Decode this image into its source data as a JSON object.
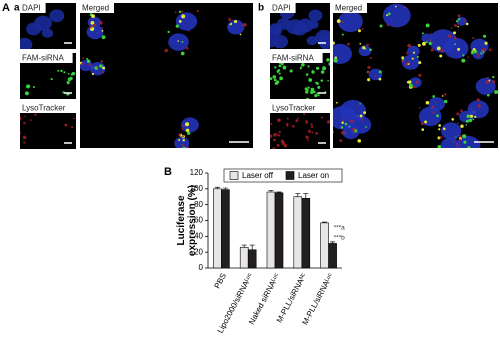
{
  "panel_a": {
    "label": "A",
    "sublabel": "a",
    "channels": [
      "DAPI",
      "FAM-siRNA",
      "LysoTracker"
    ],
    "merged": "Merged"
  },
  "panel_b": {
    "sublabel": "b",
    "channels": [
      "DAPI",
      "FAM-siRNA",
      "LysoTracker"
    ],
    "merged": "Merged"
  },
  "chart_data": {
    "type": "bar",
    "panel_label": "B",
    "ylabel": [
      "Luciferase",
      "expression (%)"
    ],
    "categories": [
      "PBS",
      "Lipo2000/siRNAᴸᵘᶜ",
      "Naked siRNAᴸᵘᶜ",
      "M-PLL/siRNAᴺᶜ",
      "M-PLL/siRNAᴸᵘᶜ"
    ],
    "series": [
      {
        "name": "Laser off",
        "color": "#e6e6e6",
        "values": [
          100,
          26,
          96,
          90,
          57
        ],
        "errors": [
          2,
          3,
          2,
          4,
          1
        ]
      },
      {
        "name": "Laser on",
        "color": "#231f20",
        "values": [
          99,
          23,
          95,
          88,
          31
        ],
        "errors": [
          2,
          6,
          1,
          6,
          2
        ]
      }
    ],
    "annotations": [
      "***a",
      "***b"
    ],
    "ylim": [
      0,
      120
    ],
    "yticks": [
      0,
      20,
      40,
      60,
      80,
      100,
      120
    ],
    "legend": "top"
  }
}
